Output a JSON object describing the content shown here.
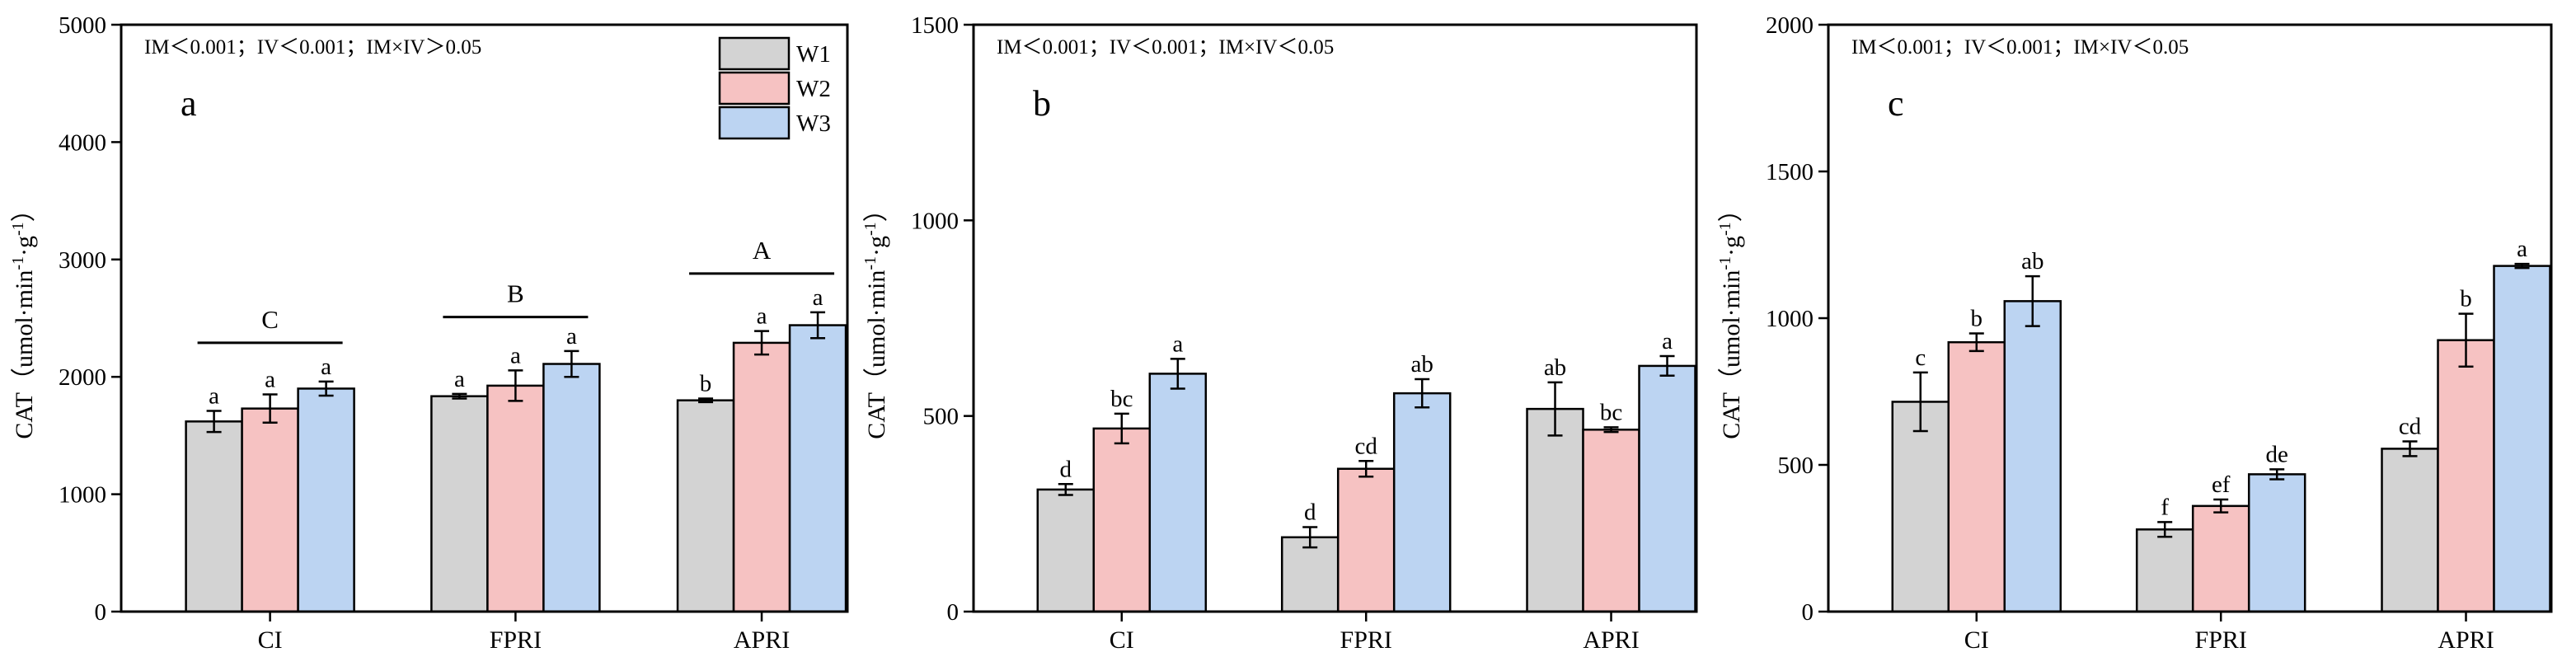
{
  "legend": [
    {
      "label": "W1",
      "color": "#d3d3d3"
    },
    {
      "label": "W2",
      "color": "#f6c2c2"
    },
    {
      "label": "W3",
      "color": "#bcd4f2"
    }
  ],
  "chart_data": [
    {
      "type": "bar",
      "panel_label": "a",
      "stats": "IM＜0.001；IV＜0.001；IM×IV＞0.05",
      "ylabel_prefix": "CAT（umol·min",
      "ylabel_mid": "·g",
      "ylabel_suffix": "）",
      "ylabel_exp": "-1",
      "ylim": [
        0,
        5000
      ],
      "yticks": [
        0,
        1000,
        2000,
        3000,
        4000,
        5000
      ],
      "ytick_labels": [
        "0",
        "1000",
        "2000",
        "3000",
        "4000",
        "5000"
      ],
      "categories": [
        "CI",
        "FPRI",
        "APRI"
      ],
      "series": [
        {
          "name": "W1",
          "values": [
            1620,
            1835,
            1800
          ],
          "errors": [
            90,
            20,
            15
          ],
          "letters": [
            "a",
            "a",
            "b"
          ]
        },
        {
          "name": "W2",
          "values": [
            1730,
            1925,
            2290
          ],
          "errors": [
            120,
            130,
            100
          ],
          "letters": [
            "a",
            "a",
            "a"
          ]
        },
        {
          "name": "W3",
          "values": [
            1900,
            2110,
            2440
          ],
          "errors": [
            60,
            110,
            110
          ],
          "letters": [
            "a",
            "a",
            "a"
          ]
        }
      ],
      "group_letters": [
        "C",
        "B",
        "A"
      ],
      "group_line_values": [
        2290,
        2510,
        2880
      ],
      "show_legend": true
    },
    {
      "type": "bar",
      "panel_label": "b",
      "stats": "IM＜0.001；IV＜0.001；IM×IV＜0.05",
      "ylabel_prefix": "CAT（umol·min",
      "ylabel_mid": "·g",
      "ylabel_suffix": "）",
      "ylabel_exp": "-1",
      "ylim": [
        0,
        1500
      ],
      "yticks": [
        0,
        500,
        1000,
        1500
      ],
      "ytick_labels": [
        "0",
        "500",
        "1000",
        "1500"
      ],
      "categories": [
        "CI",
        "FPRI",
        "APRI"
      ],
      "series": [
        {
          "name": "W1",
          "values": [
            312,
            190,
            518
          ],
          "errors": [
            14,
            26,
            68
          ],
          "letters": [
            "d",
            "d",
            "ab"
          ]
        },
        {
          "name": "W2",
          "values": [
            468,
            365,
            465
          ],
          "errors": [
            38,
            20,
            6
          ],
          "letters": [
            "bc",
            "cd",
            "bc"
          ]
        },
        {
          "name": "W3",
          "values": [
            608,
            558,
            628
          ],
          "errors": [
            38,
            36,
            25
          ],
          "letters": [
            "a",
            "ab",
            "a"
          ]
        }
      ],
      "group_letters": [],
      "group_line_values": [],
      "show_legend": false
    },
    {
      "type": "bar",
      "panel_label": "c",
      "stats": "IM＜0.001；IV＜0.001；IM×IV＜0.05",
      "ylabel_prefix": "CAT（umol·min",
      "ylabel_mid": "·g",
      "ylabel_suffix": "）",
      "ylabel_exp": "-1",
      "ylim": [
        0,
        2000
      ],
      "yticks": [
        0,
        500,
        1000,
        1500,
        2000
      ],
      "ytick_labels": [
        "0",
        "500",
        "1000",
        "1500",
        "2000"
      ],
      "categories": [
        "CI",
        "FPRI",
        "APRI"
      ],
      "series": [
        {
          "name": "W1",
          "values": [
            715,
            280,
            555
          ],
          "errors": [
            100,
            25,
            25
          ],
          "letters": [
            "c",
            "f",
            "cd"
          ]
        },
        {
          "name": "W2",
          "values": [
            918,
            360,
            925
          ],
          "errors": [
            30,
            22,
            90
          ],
          "letters": [
            "b",
            "ef",
            "b"
          ]
        },
        {
          "name": "W3",
          "values": [
            1058,
            468,
            1178
          ],
          "errors": [
            85,
            17,
            7
          ],
          "letters": [
            "ab",
            "de",
            "a"
          ]
        }
      ],
      "group_letters": [],
      "group_line_values": [],
      "show_legend": false
    }
  ]
}
